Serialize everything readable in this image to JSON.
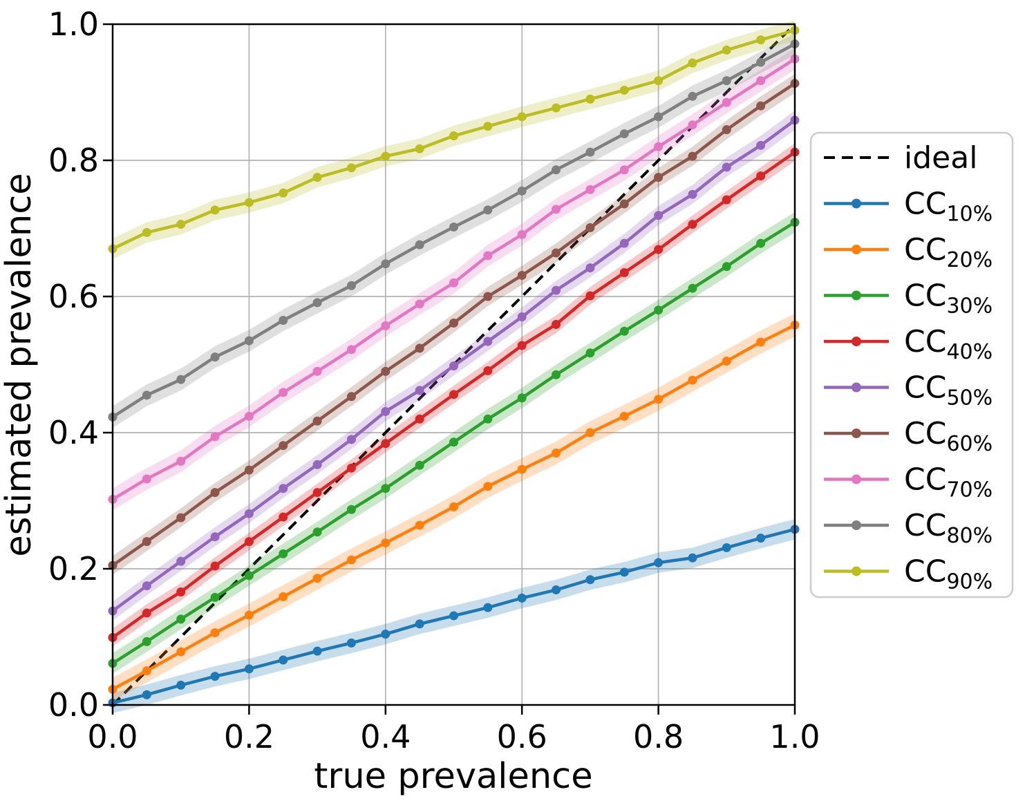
{
  "figure": {
    "xlabel": "true prevalence",
    "ylabel": "estimated prevalence",
    "x_tick_labels": [
      "0.0",
      "0.2",
      "0.4",
      "0.6",
      "0.8",
      "1.0"
    ],
    "y_tick_labels": [
      "0.0",
      "0.2",
      "0.4",
      "0.6",
      "0.8",
      "1.0"
    ],
    "x_tick_values": [
      0,
      0.2,
      0.4,
      0.6,
      0.8,
      1.0
    ],
    "y_tick_values": [
      0,
      0.2,
      0.4,
      0.6,
      0.8,
      1.0
    ],
    "grid_color": "#b3b3b3",
    "spine_color": "#000000",
    "legend_border_color": "#cccccc"
  },
  "chart_data": {
    "type": "line",
    "title": "",
    "xlabel": "true prevalence",
    "ylabel": "estimated prevalence",
    "xlim": [
      0,
      1
    ],
    "ylim": [
      0,
      1
    ],
    "grid": true,
    "legend_position": "outside right",
    "x": [
      0.0,
      0.05,
      0.1,
      0.15,
      0.2,
      0.25,
      0.3,
      0.35,
      0.4,
      0.45,
      0.5,
      0.55,
      0.6,
      0.65,
      0.7,
      0.75,
      0.8,
      0.85,
      0.9,
      0.95,
      1.0
    ],
    "ideal": {
      "label": "ideal",
      "color": "#000000",
      "linestyle": "dashed",
      "x": [
        0,
        1
      ],
      "y": [
        0,
        1
      ]
    },
    "series": [
      {
        "name": "CC_10%",
        "label_base": "CC",
        "label_sub": "10%",
        "color": "#1f77b4",
        "band_halfwidth": 0.015,
        "values": [
          0.003,
          0.015,
          0.029,
          0.042,
          0.053,
          0.066,
          0.079,
          0.091,
          0.104,
          0.119,
          0.131,
          0.143,
          0.157,
          0.169,
          0.184,
          0.195,
          0.209,
          0.216,
          0.231,
          0.245,
          0.258
        ]
      },
      {
        "name": "CC_20%",
        "label_base": "CC",
        "label_sub": "20%",
        "color": "#ff7f0e",
        "band_halfwidth": 0.017,
        "values": [
          0.023,
          0.05,
          0.078,
          0.106,
          0.132,
          0.159,
          0.186,
          0.213,
          0.238,
          0.264,
          0.291,
          0.321,
          0.346,
          0.37,
          0.4,
          0.424,
          0.449,
          0.477,
          0.505,
          0.533,
          0.558
        ]
      },
      {
        "name": "CC_30%",
        "label_base": "CC",
        "label_sub": "30%",
        "color": "#2ca02c",
        "band_halfwidth": 0.015,
        "values": [
          0.061,
          0.093,
          0.126,
          0.158,
          0.19,
          0.222,
          0.254,
          0.287,
          0.318,
          0.352,
          0.386,
          0.42,
          0.451,
          0.485,
          0.517,
          0.549,
          0.58,
          0.612,
          0.644,
          0.678,
          0.709
        ]
      },
      {
        "name": "CC_40%",
        "label_base": "CC",
        "label_sub": "40%",
        "color": "#d62728",
        "band_halfwidth": 0.013,
        "values": [
          0.099,
          0.135,
          0.166,
          0.204,
          0.24,
          0.276,
          0.312,
          0.348,
          0.384,
          0.42,
          0.456,
          0.491,
          0.528,
          0.559,
          0.601,
          0.635,
          0.669,
          0.706,
          0.742,
          0.777,
          0.812
        ]
      },
      {
        "name": "CC_50%",
        "label_base": "CC",
        "label_sub": "50%",
        "color": "#9467bd",
        "band_halfwidth": 0.014,
        "values": [
          0.138,
          0.175,
          0.211,
          0.247,
          0.281,
          0.318,
          0.353,
          0.39,
          0.431,
          0.462,
          0.498,
          0.534,
          0.57,
          0.609,
          0.642,
          0.678,
          0.719,
          0.75,
          0.79,
          0.822,
          0.859
        ]
      },
      {
        "name": "CC_60%",
        "label_base": "CC",
        "label_sub": "60%",
        "color": "#8c564b",
        "band_halfwidth": 0.014,
        "values": [
          0.205,
          0.24,
          0.275,
          0.312,
          0.345,
          0.381,
          0.417,
          0.453,
          0.49,
          0.524,
          0.561,
          0.6,
          0.631,
          0.664,
          0.701,
          0.736,
          0.775,
          0.806,
          0.845,
          0.88,
          0.913
        ]
      },
      {
        "name": "CC_70%",
        "label_base": "CC",
        "label_sub": "70%",
        "color": "#e377c2",
        "band_halfwidth": 0.016,
        "values": [
          0.302,
          0.332,
          0.358,
          0.394,
          0.424,
          0.459,
          0.49,
          0.522,
          0.557,
          0.589,
          0.62,
          0.66,
          0.691,
          0.728,
          0.757,
          0.786,
          0.82,
          0.852,
          0.885,
          0.917,
          0.949
        ]
      },
      {
        "name": "CC_80%",
        "label_base": "CC",
        "label_sub": "80%",
        "color": "#7f7f7f",
        "band_halfwidth": 0.016,
        "values": [
          0.423,
          0.455,
          0.478,
          0.511,
          0.535,
          0.565,
          0.591,
          0.616,
          0.648,
          0.676,
          0.702,
          0.727,
          0.755,
          0.786,
          0.812,
          0.839,
          0.864,
          0.894,
          0.917,
          0.944,
          0.971
        ]
      },
      {
        "name": "CC_90%",
        "label_base": "CC",
        "label_sub": "90%",
        "color": "#bcbd22",
        "band_halfwidth": 0.015,
        "values": [
          0.67,
          0.694,
          0.706,
          0.727,
          0.738,
          0.752,
          0.775,
          0.789,
          0.806,
          0.817,
          0.836,
          0.85,
          0.864,
          0.877,
          0.89,
          0.903,
          0.917,
          0.943,
          0.962,
          0.977,
          0.991
        ]
      }
    ]
  }
}
